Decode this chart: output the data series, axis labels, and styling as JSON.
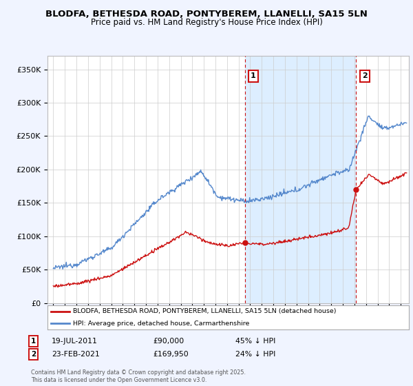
{
  "title1": "BLODFA, BETHESDA ROAD, PONTYBEREM, LLANELLI, SA15 5LN",
  "title2": "Price paid vs. HM Land Registry's House Price Index (HPI)",
  "ylabel_ticks": [
    "£0",
    "£50K",
    "£100K",
    "£150K",
    "£200K",
    "£250K",
    "£300K",
    "£350K"
  ],
  "ytick_vals": [
    0,
    50000,
    100000,
    150000,
    200000,
    250000,
    300000,
    350000
  ],
  "ylim": [
    0,
    370000
  ],
  "xlim_start": 1994.5,
  "xlim_end": 2025.7,
  "hpi_color": "#5588cc",
  "hpi_fill_color": "#ddeeff",
  "price_color": "#cc1111",
  "marker1_x": 2011.54,
  "marker1_y": 90000,
  "marker1_label": "1",
  "marker2_x": 2021.15,
  "marker2_y": 169950,
  "marker2_label": "2",
  "vline1_x": 2011.54,
  "vline2_x": 2021.15,
  "legend_entry1": "BLODFA, BETHESDA ROAD, PONTYBEREM, LLANELLI, SA15 5LN (detached house)",
  "legend_entry2": "HPI: Average price, detached house, Carmarthenshire",
  "annotation1_date": "19-JUL-2011",
  "annotation1_price": "£90,000",
  "annotation1_pct": "45% ↓ HPI",
  "annotation2_date": "23-FEB-2021",
  "annotation2_price": "£169,950",
  "annotation2_pct": "24% ↓ HPI",
  "footer": "Contains HM Land Registry data © Crown copyright and database right 2025.\nThis data is licensed under the Open Government Licence v3.0.",
  "bg_color": "#f0f4ff",
  "plot_bg": "#ffffff"
}
